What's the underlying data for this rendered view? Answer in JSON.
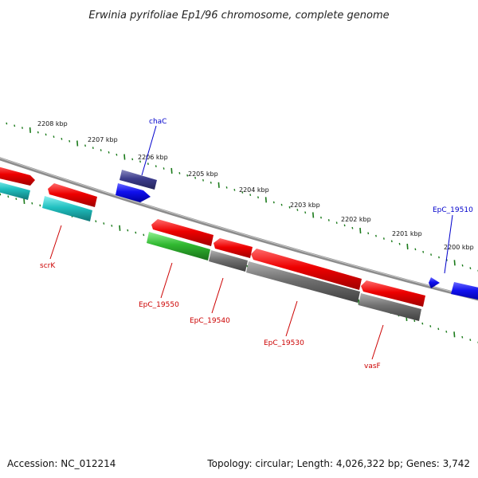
{
  "title": "Erwinia pyrifoliae Ep1/96 chromosome, complete genome",
  "footer": {
    "accession": "Accession: NC_012214",
    "summary": "Topology: circular; Length: 4,026,322 bp; Genes: 3,742"
  },
  "scale_labels": [
    "2208 kbp",
    "2207 kbp",
    "2206 kbp",
    "2205 kbp",
    "2204 kbp",
    "2203 kbp",
    "2202 kbp",
    "2201 kbp",
    "2200 kbp"
  ],
  "gene_labels": [
    {
      "key": "chac",
      "text": "chaC",
      "color": "#0000cc"
    },
    {
      "key": "epc-19510",
      "text": "EpC_19510",
      "color": "#0000cc"
    },
    {
      "key": "scrk",
      "text": "scrK",
      "color": "#cc0000"
    },
    {
      "key": "epc-19550",
      "text": "EpC_19550",
      "color": "#cc0000"
    },
    {
      "key": "epc-19540",
      "text": "EpC_19540",
      "color": "#cc0000"
    },
    {
      "key": "epc-19530",
      "text": "EpC_19530",
      "color": "#cc0000"
    },
    {
      "key": "vasf",
      "text": "vasF",
      "color": "#cc0000"
    }
  ],
  "colors": {
    "backbone": "#8c8c8c",
    "tick": "#1a7a1a",
    "forward_gene": "#e00000",
    "reverse_gene": "#1010e0",
    "chac_gene": "#3a3a8a",
    "rna_gene": "#20b0b0",
    "green_gene": "#30b030",
    "gray_gene": "#6e6e6e"
  }
}
